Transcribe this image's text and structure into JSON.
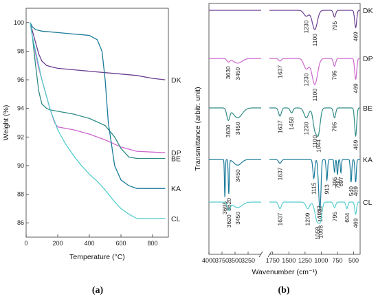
{
  "chart_data": [
    {
      "panel_label": "(a)",
      "type": "line",
      "xlabel": "Temperature (°C)",
      "ylabel": "Weight (%)",
      "xlim": [
        0,
        900
      ],
      "ylim": [
        85,
        101
      ],
      "xticks": [
        0,
        200,
        400,
        600,
        800
      ],
      "yticks": [
        86,
        88,
        90,
        92,
        94,
        96,
        98,
        100
      ],
      "series": [
        {
          "name": "DK",
          "color": "#6a3d8f",
          "x": [
            25,
            40,
            60,
            80,
            100,
            130,
            160,
            200,
            300,
            400,
            500,
            600,
            700,
            800,
            880
          ],
          "y": [
            100,
            99.4,
            98.6,
            97.8,
            97.3,
            97.0,
            96.9,
            96.8,
            96.7,
            96.6,
            96.5,
            96.4,
            96.3,
            96.1,
            96.0
          ]
        },
        {
          "name": "DP",
          "color": "#cc66cc",
          "x": [
            25,
            40,
            60,
            80,
            100,
            120,
            150,
            180,
            200,
            300,
            400,
            500,
            600,
            700,
            880
          ],
          "y": [
            100,
            99.0,
            97.8,
            96.8,
            96.0,
            95.2,
            94.0,
            93.0,
            92.7,
            92.5,
            92.2,
            91.8,
            91.3,
            91.0,
            90.9
          ]
        },
        {
          "name": "BE",
          "color": "#2e8b83",
          "x": [
            25,
            40,
            60,
            80,
            100,
            130,
            150,
            200,
            300,
            400,
            500,
            560,
            600,
            650,
            700,
            880
          ],
          "y": [
            100,
            99.0,
            97.0,
            95.2,
            94.3,
            94.0,
            93.9,
            93.8,
            93.6,
            93.3,
            92.8,
            92.0,
            91.2,
            90.6,
            90.5,
            90.5
          ]
        },
        {
          "name": "KA",
          "color": "#1a7a9a",
          "x": [
            25,
            40,
            60,
            100,
            200,
            300,
            400,
            450,
            480,
            500,
            520,
            560,
            600,
            650,
            700,
            880
          ],
          "y": [
            100,
            99.7,
            99.5,
            99.4,
            99.3,
            99.2,
            99.1,
            98.8,
            98.0,
            96.0,
            93.0,
            90.0,
            89.0,
            88.6,
            88.4,
            88.4
          ]
        },
        {
          "name": "CL",
          "color": "#55cccc",
          "x": [
            25,
            40,
            60,
            80,
            100,
            150,
            200,
            250,
            300,
            350,
            400,
            450,
            500,
            550,
            600,
            650,
            700,
            880
          ],
          "y": [
            100,
            99.0,
            98.0,
            97.0,
            96.0,
            94.0,
            92.5,
            91.5,
            90.7,
            90.0,
            89.4,
            88.9,
            88.3,
            87.6,
            87.0,
            86.6,
            86.3,
            86.3
          ]
        }
      ]
    },
    {
      "panel_label": "(b)",
      "type": "line",
      "xlabel": "Wavenumber (cm⁻¹)",
      "ylabel": "Transmittance (arbitr. unit)",
      "xlim": [
        4000,
        400
      ],
      "axis_break": [
        3000,
        1800
      ],
      "xticks": [
        4000,
        3750,
        3500,
        3250,
        1750,
        1500,
        1250,
        1000,
        750,
        500
      ],
      "series": [
        {
          "name": "DK",
          "color": "#6a3d8f",
          "bands": [
            {
              "wn": 1230,
              "d": 0.3,
              "w": 55
            },
            {
              "wn": 1100,
              "d": 1.0,
              "w": 55
            },
            {
              "wn": 795,
              "d": 0.35,
              "w": 25
            },
            {
              "wn": 469,
              "d": 0.9,
              "w": 22
            }
          ],
          "labels": [
            "1230",
            "1100",
            "795",
            "469"
          ]
        },
        {
          "name": "DP",
          "color": "#cc66cc",
          "bands": [
            {
              "wn": 3630,
              "d": 0.12,
              "w": 40
            },
            {
              "wn": 3450,
              "d": 0.18,
              "w": 120
            },
            {
              "wn": 1637,
              "d": 0.1,
              "w": 30
            },
            {
              "wn": 1230,
              "d": 0.4,
              "w": 55
            },
            {
              "wn": 1100,
              "d": 1.0,
              "w": 60
            },
            {
              "wn": 795,
              "d": 0.3,
              "w": 25
            },
            {
              "wn": 469,
              "d": 0.8,
              "w": 22
            }
          ],
          "labels": [
            "3630",
            "3450",
            "1637",
            "1230",
            "1100",
            "795",
            "469"
          ]
        },
        {
          "name": "BE",
          "color": "#2e8b83",
          "bands": [
            {
              "wn": 3630,
              "d": 0.35,
              "w": 40
            },
            {
              "wn": 3450,
              "d": 0.3,
              "w": 120
            },
            {
              "wn": 1637,
              "d": 0.25,
              "w": 30
            },
            {
              "wn": 1458,
              "d": 0.15,
              "w": 30
            },
            {
              "wn": 1230,
              "d": 0.3,
              "w": 50
            },
            {
              "wn": 1100,
              "d": 0.6,
              "w": 40
            },
            {
              "wn": 1044,
              "d": 0.75,
              "w": 40
            },
            {
              "wn": 795,
              "d": 0.3,
              "w": 25
            },
            {
              "wn": 469,
              "d": 0.85,
              "w": 22
            }
          ],
          "labels": [
            "3630",
            "3450",
            "1637",
            "1458",
            "1230",
            "1100",
            "1044",
            "795",
            "469"
          ]
        },
        {
          "name": "KA",
          "color": "#1a7a9a",
          "bands": [
            {
              "wn": 3695,
              "d": 1.0,
              "w": 12
            },
            {
              "wn": 3620,
              "d": 0.9,
              "w": 14
            },
            {
              "wn": 3450,
              "d": 0.15,
              "w": 100
            },
            {
              "wn": 1637,
              "d": 0.1,
              "w": 30
            },
            {
              "wn": 1115,
              "d": 0.5,
              "w": 20
            },
            {
              "wn": 1032,
              "d": 0.85,
              "w": 22
            },
            {
              "wn": 1013,
              "d": 0.8,
              "w": 18
            },
            {
              "wn": 913,
              "d": 0.55,
              "w": 15
            },
            {
              "wn": 795,
              "d": 0.35,
              "w": 12
            },
            {
              "wn": 750,
              "d": 0.4,
              "w": 12
            },
            {
              "wn": 697,
              "d": 0.35,
              "w": 12
            },
            {
              "wn": 540,
              "d": 0.6,
              "w": 15
            },
            {
              "wn": 469,
              "d": 0.6,
              "w": 15
            }
          ],
          "labels": [
            "3695",
            "3620",
            "3450",
            "1637",
            "1115",
            "1032",
            "1013",
            "913",
            "795",
            "750",
            "697",
            "540",
            "469"
          ]
        },
        {
          "name": "CL",
          "color": "#55cccc",
          "bands": [
            {
              "wn": 3620,
              "d": 0.35,
              "w": 40
            },
            {
              "wn": 3450,
              "d": 0.25,
              "w": 120
            },
            {
              "wn": 1637,
              "d": 0.3,
              "w": 30
            },
            {
              "wn": 1209,
              "d": 0.3,
              "w": 40
            },
            {
              "wn": 1059,
              "d": 0.9,
              "w": 50
            },
            {
              "wn": 1008,
              "d": 0.55,
              "w": 30
            },
            {
              "wn": 795,
              "d": 0.25,
              "w": 25
            },
            {
              "wn": 604,
              "d": 0.3,
              "w": 20
            },
            {
              "wn": 469,
              "d": 0.55,
              "w": 20
            }
          ],
          "labels": [
            "3620",
            "3450",
            "1637",
            "1209",
            "1059",
            "1008",
            "795",
            "604",
            "469"
          ]
        }
      ]
    }
  ]
}
